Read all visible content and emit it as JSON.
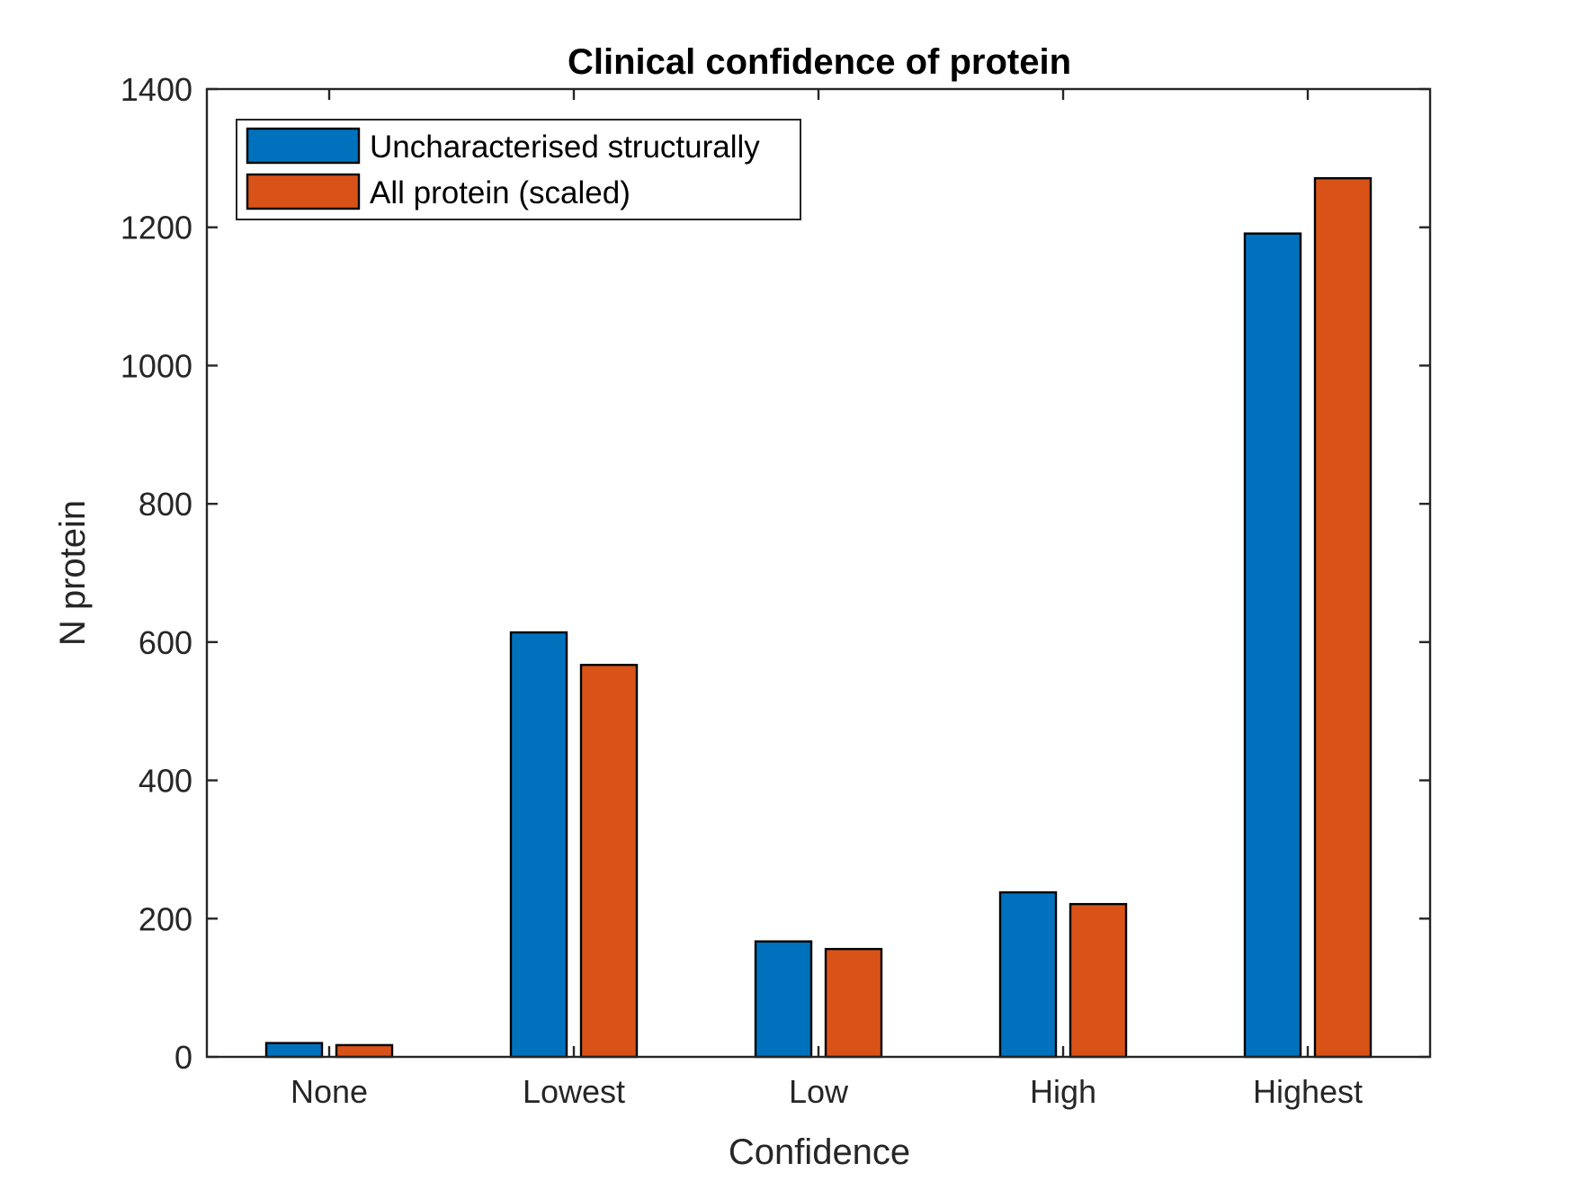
{
  "chart_data": {
    "type": "bar",
    "title": "Clinical confidence of protein",
    "xlabel": "Confidence",
    "ylabel": "N protein",
    "categories": [
      "None",
      "Lowest",
      "Low",
      "High",
      "Highest"
    ],
    "series": [
      {
        "name": "Uncharacterised structurally",
        "color": "#0072BD",
        "values": [
          20,
          614,
          167,
          238,
          1191
        ]
      },
      {
        "name": "All protein (scaled)",
        "color": "#D95319",
        "values": [
          17,
          567,
          156,
          221,
          1271
        ]
      }
    ],
    "ylim": [
      0,
      1400
    ],
    "yticks": [
      0,
      200,
      400,
      600,
      800,
      1000,
      1200,
      1400
    ],
    "grid": false,
    "legend_position": "top-left"
  }
}
